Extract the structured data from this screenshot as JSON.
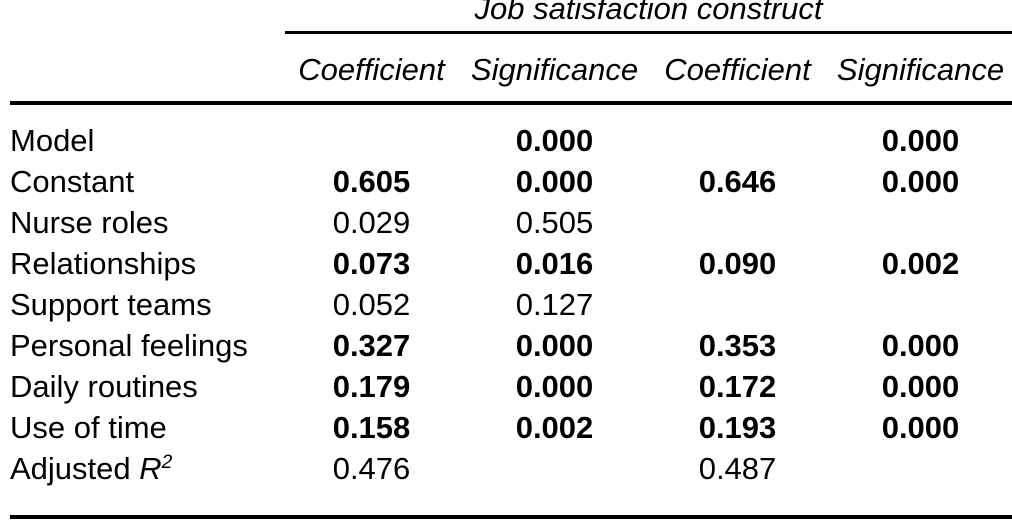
{
  "colors": {
    "text": "#000000",
    "background": "#ffffff",
    "rule": "#000000"
  },
  "table": {
    "spanner_title": "Job satisfaction construct",
    "column_headers": [
      "Coefficient",
      "Significance",
      "Coefficient",
      "Significance"
    ],
    "rows": [
      {
        "label": "Model",
        "values": [
          "",
          "0.000",
          "",
          "0.000"
        ],
        "bold": [
          false,
          true,
          false,
          true
        ]
      },
      {
        "label": "Constant",
        "values": [
          "0.605",
          "0.000",
          "0.646",
          "0.000"
        ],
        "bold": [
          true,
          true,
          true,
          true
        ]
      },
      {
        "label": "Nurse roles",
        "values": [
          "0.029",
          "0.505",
          "",
          ""
        ],
        "bold": [
          false,
          false,
          false,
          false
        ]
      },
      {
        "label": "Relationships",
        "values": [
          "0.073",
          "0.016",
          "0.090",
          "0.002"
        ],
        "bold": [
          true,
          true,
          true,
          true
        ]
      },
      {
        "label": "Support teams",
        "values": [
          "0.052",
          "0.127",
          "",
          ""
        ],
        "bold": [
          false,
          false,
          false,
          false
        ]
      },
      {
        "label": "Personal feelings",
        "values": [
          "0.327",
          "0.000",
          "0.353",
          "0.000"
        ],
        "bold": [
          true,
          true,
          true,
          true
        ]
      },
      {
        "label": "Daily routines",
        "values": [
          "0.179",
          "0.000",
          "0.172",
          "0.000"
        ],
        "bold": [
          true,
          true,
          true,
          true
        ]
      },
      {
        "label": "Use of time",
        "values": [
          "0.158",
          "0.002",
          "0.193",
          "0.000"
        ],
        "bold": [
          true,
          true,
          true,
          true
        ]
      },
      {
        "label": "Adjusted R2",
        "label_segments": [
          {
            "text": "Adjusted ",
            "style": "normal"
          },
          {
            "text": "R",
            "style": "italic"
          },
          {
            "text": "2",
            "style": "superscript"
          }
        ],
        "values": [
          "0.476",
          "",
          "0.487",
          ""
        ],
        "bold": [
          false,
          false,
          false,
          false
        ]
      }
    ]
  }
}
